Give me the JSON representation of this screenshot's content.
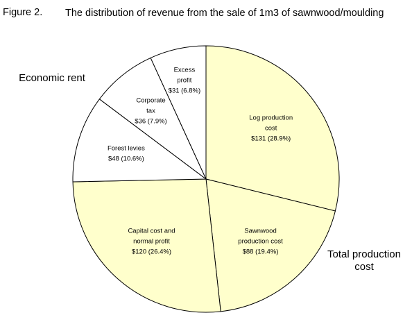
{
  "figure": {
    "number": "Figure 2.",
    "title": "The distribution of revenue from the sale of 1m3 of sawnwood/moulding"
  },
  "groups": {
    "economic_rent": "Economic rent",
    "total_production_cost": "Total production cost"
  },
  "chart_data": {
    "type": "pie",
    "title": "The distribution of revenue from the sale of 1m3 of sawnwood/moulding",
    "start_angle_deg": 0,
    "direction": "clockwise",
    "slices": [
      {
        "label": "Log production cost",
        "value": 131,
        "percent": 28.9,
        "text": "$131 (28.9%)",
        "color": "#ffffcc",
        "group": "Total production cost",
        "lines": [
          "Log production",
          "cost",
          "$131 (28.9%)"
        ]
      },
      {
        "label": "Sawnwood production cost",
        "value": 88,
        "percent": 19.4,
        "text": "$88 (19.4%)",
        "color": "#ffffcc",
        "group": "Total production cost",
        "lines": [
          "Sawnwood",
          "production cost",
          "$88 (19.4%)"
        ]
      },
      {
        "label": "Capital cost and normal profit",
        "value": 120,
        "percent": 26.4,
        "text": "$120 (26.4%)",
        "color": "#ffffcc",
        "group": "Total production cost",
        "lines": [
          "Capital cost and",
          "normal profit",
          "$120 (26.4%)"
        ]
      },
      {
        "label": "Forest levies",
        "value": 48,
        "percent": 10.6,
        "text": "$48 (10.6%)",
        "color": "#ffffff",
        "group": "Economic rent",
        "lines": [
          "Forest levies",
          "$48 (10.6%)"
        ]
      },
      {
        "label": "Corporate tax",
        "value": 36,
        "percent": 7.9,
        "text": "$36 (7.9%)",
        "color": "#ffffff",
        "group": "Economic rent",
        "lines": [
          "Corporate",
          "tax",
          "$36 (7.9%)"
        ]
      },
      {
        "label": "Excess profit",
        "value": 31,
        "percent": 6.8,
        "text": "$31 (6.8%)",
        "color": "#ffffff",
        "group": "Economic rent",
        "lines": [
          "Excess",
          "profit",
          "$31 (6.8%)"
        ]
      }
    ]
  }
}
